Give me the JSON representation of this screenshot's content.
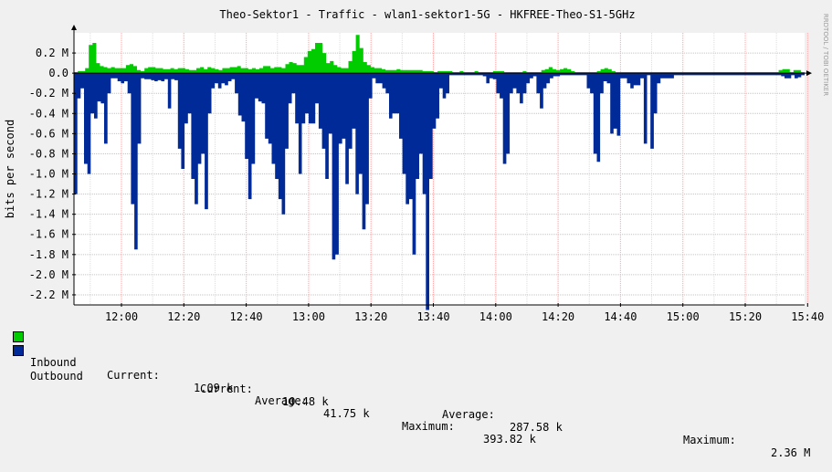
{
  "chart_data": {
    "type": "area",
    "title": "Theo-Sektor1 - Traffic - wlan1-sektor1-5G - HKFREE-Theo-S1-5GHz",
    "ylabel": "bits per second",
    "watermark": "RRDTOOL / TOBI OETIKER",
    "ylim": [
      -2.3,
      0.4
    ],
    "y_ticks": [
      {
        "v": 0.2,
        "label": "0.2 M"
      },
      {
        "v": 0.0,
        "label": "0.0"
      },
      {
        "v": -0.2,
        "label": "-0.2 M"
      },
      {
        "v": -0.4,
        "label": "-0.4 M"
      },
      {
        "v": -0.6,
        "label": "-0.6 M"
      },
      {
        "v": -0.8,
        "label": "-0.8 M"
      },
      {
        "v": -1.0,
        "label": "-1.0 M"
      },
      {
        "v": -1.2,
        "label": "-1.2 M"
      },
      {
        "v": -1.4,
        "label": "-1.4 M"
      },
      {
        "v": -1.6,
        "label": "-1.6 M"
      },
      {
        "v": -1.8,
        "label": "-1.8 M"
      },
      {
        "v": -2.0,
        "label": "-2.0 M"
      },
      {
        "v": -2.2,
        "label": "-2.2 M"
      }
    ],
    "x_ticks": [
      "12:00",
      "12:20",
      "12:40",
      "13:00",
      "13:20",
      "13:40",
      "14:00",
      "14:20",
      "14:40",
      "15:00",
      "15:20",
      "15:40"
    ],
    "colors": {
      "inbound": "#00cc00",
      "outbound": "#002a97",
      "grid": "#ffaaaa",
      "axis": "#000000"
    },
    "series": [
      {
        "name": "Inbound",
        "values": [
          0.01,
          0.02,
          0.02,
          0.05,
          0.28,
          0.3,
          0.1,
          0.07,
          0.06,
          0.05,
          0.06,
          0.05,
          0.05,
          0.05,
          0.08,
          0.09,
          0.07,
          0.03,
          0.02,
          0.05,
          0.06,
          0.06,
          0.05,
          0.05,
          0.04,
          0.04,
          0.05,
          0.04,
          0.05,
          0.05,
          0.04,
          0.03,
          0.03,
          0.05,
          0.06,
          0.04,
          0.06,
          0.05,
          0.04,
          0.03,
          0.05,
          0.05,
          0.06,
          0.06,
          0.07,
          0.05,
          0.05,
          0.04,
          0.05,
          0.04,
          0.05,
          0.07,
          0.07,
          0.05,
          0.06,
          0.06,
          0.05,
          0.09,
          0.11,
          0.1,
          0.08,
          0.08,
          0.16,
          0.22,
          0.24,
          0.3,
          0.3,
          0.2,
          0.1,
          0.12,
          0.08,
          0.06,
          0.05,
          0.05,
          0.12,
          0.22,
          0.38,
          0.25,
          0.11,
          0.08,
          0.06,
          0.05,
          0.05,
          0.04,
          0.03,
          0.03,
          0.03,
          0.04,
          0.03,
          0.03,
          0.03,
          0.03,
          0.03,
          0.03,
          0.02,
          0.02,
          0.02,
          0.01,
          0.02,
          0.02,
          0.02,
          0.02,
          0.01,
          0.01,
          0.02,
          0.01,
          0.01,
          0.01,
          0.02,
          0.01,
          0.01,
          0.01,
          0.01,
          0.02,
          0.02,
          0.02,
          0.01,
          0.01,
          0.01,
          0.01,
          0.01,
          0.02,
          0.01,
          0.01,
          0.01,
          0.01,
          0.03,
          0.04,
          0.06,
          0.04,
          0.03,
          0.04,
          0.05,
          0.04,
          0.02,
          0.01,
          0.01,
          0.01,
          0.01,
          0.01,
          0.01,
          0.02,
          0.04,
          0.05,
          0.04,
          0.02,
          0.01,
          0.01,
          0.01,
          0.01,
          0.01,
          0.01,
          0.01,
          0.01,
          0.01,
          0.01,
          0.01,
          0.01,
          0.01,
          0.01,
          0.01,
          0.01,
          0.01,
          0.01,
          0.01,
          0.01,
          0.01,
          0.01,
          0.01,
          0.01,
          0.01,
          0.01,
          0.01,
          0.01,
          0.01,
          0.01,
          0.01,
          0.01,
          0.01,
          0.01,
          0.01,
          0.01,
          0.01,
          0.01,
          0.01,
          0.01,
          0.01,
          0.01,
          0.01,
          0.01,
          0.03,
          0.04,
          0.04,
          0.01,
          0.03,
          0.03,
          0.01
        ]
      },
      {
        "name": "Outbound",
        "values": [
          -1.2,
          -0.25,
          -0.15,
          -0.9,
          -1.0,
          -0.4,
          -0.45,
          -0.28,
          -0.3,
          -0.7,
          -0.2,
          -0.05,
          -0.05,
          -0.08,
          -0.1,
          -0.08,
          -0.2,
          -1.3,
          -1.75,
          -0.7,
          -0.05,
          -0.06,
          -0.06,
          -0.07,
          -0.08,
          -0.07,
          -0.08,
          -0.06,
          -0.35,
          -0.06,
          -0.07,
          -0.75,
          -0.95,
          -0.5,
          -0.4,
          -1.05,
          -1.3,
          -0.9,
          -0.8,
          -1.35,
          -0.4,
          -0.15,
          -0.1,
          -0.15,
          -0.1,
          -0.12,
          -0.08,
          -0.06,
          -0.2,
          -0.42,
          -0.48,
          -0.85,
          -1.25,
          -0.9,
          -0.25,
          -0.28,
          -0.3,
          -0.65,
          -0.7,
          -0.9,
          -1.05,
          -1.25,
          -1.4,
          -0.75,
          -0.3,
          -0.2,
          -0.5,
          -1.0,
          -0.5,
          -0.4,
          -0.5,
          -0.5,
          -0.3,
          -0.55,
          -0.75,
          -1.05,
          -0.6,
          -1.85,
          -1.8,
          -0.7,
          -0.65,
          -1.1,
          -0.75,
          -0.55,
          -1.2,
          -1.0,
          -1.55,
          -1.3,
          -0.25,
          -0.05,
          -0.1,
          -0.1,
          -0.15,
          -0.2,
          -0.45,
          -0.4,
          -0.4,
          -0.65,
          -1.0,
          -1.3,
          -1.25,
          -1.8,
          -1.05,
          -0.8,
          -1.2,
          -2.35,
          -1.05,
          -0.55,
          -0.45,
          -0.15,
          -0.25,
          -0.2,
          -0.02,
          -0.02,
          -0.02,
          -0.02,
          -0.02,
          -0.02,
          -0.02,
          -0.02,
          -0.02,
          -0.02,
          -0.03,
          -0.1,
          -0.05,
          -0.06,
          -0.2,
          -0.25,
          -0.9,
          -0.8,
          -0.2,
          -0.15,
          -0.2,
          -0.3,
          -0.2,
          -0.1,
          -0.05,
          -0.03,
          -0.2,
          -0.35,
          -0.15,
          -0.1,
          -0.05,
          -0.03,
          -0.03,
          -0.02,
          -0.02,
          -0.02,
          -0.02,
          -0.02,
          -0.02,
          -0.02,
          -0.02,
          -0.15,
          -0.2,
          -0.8,
          -0.88,
          -0.2,
          -0.08,
          -0.1,
          -0.6,
          -0.55,
          -0.62,
          -0.05,
          -0.05,
          -0.1,
          -0.15,
          -0.12,
          -0.12,
          -0.05,
          -0.7,
          -0.02,
          -0.75,
          -0.4,
          -0.1,
          -0.05,
          -0.05,
          -0.05,
          -0.05,
          -0.02,
          -0.02,
          -0.02,
          -0.02,
          -0.02,
          -0.02,
          -0.02,
          -0.02,
          -0.02,
          -0.02,
          -0.02,
          -0.02,
          -0.02,
          -0.02,
          -0.02,
          -0.02,
          -0.02,
          -0.02,
          -0.02,
          -0.02,
          -0.02,
          -0.02,
          -0.02,
          -0.02,
          -0.02,
          -0.02,
          -0.02,
          -0.02,
          -0.02,
          -0.02,
          -0.02,
          -0.02,
          -0.03,
          -0.05,
          -0.05,
          -0.02,
          -0.05,
          -0.04,
          -0.02
        ]
      }
    ]
  },
  "legend": {
    "inbound": {
      "name": "Inbound",
      "current_label": "Current:",
      "current": "1.09 k",
      "average_label": "Average:",
      "average": "41.75 k",
      "maximum_label": "Maximum:",
      "maximum": "393.82 k"
    },
    "outbound": {
      "name": "Outbound",
      "current_label": "Current:",
      "current": "10.48 k",
      "average_label": "Average:",
      "average": "287.58 k",
      "maximum_label": "Maximum:",
      "maximum": "2.36 M"
    }
  }
}
